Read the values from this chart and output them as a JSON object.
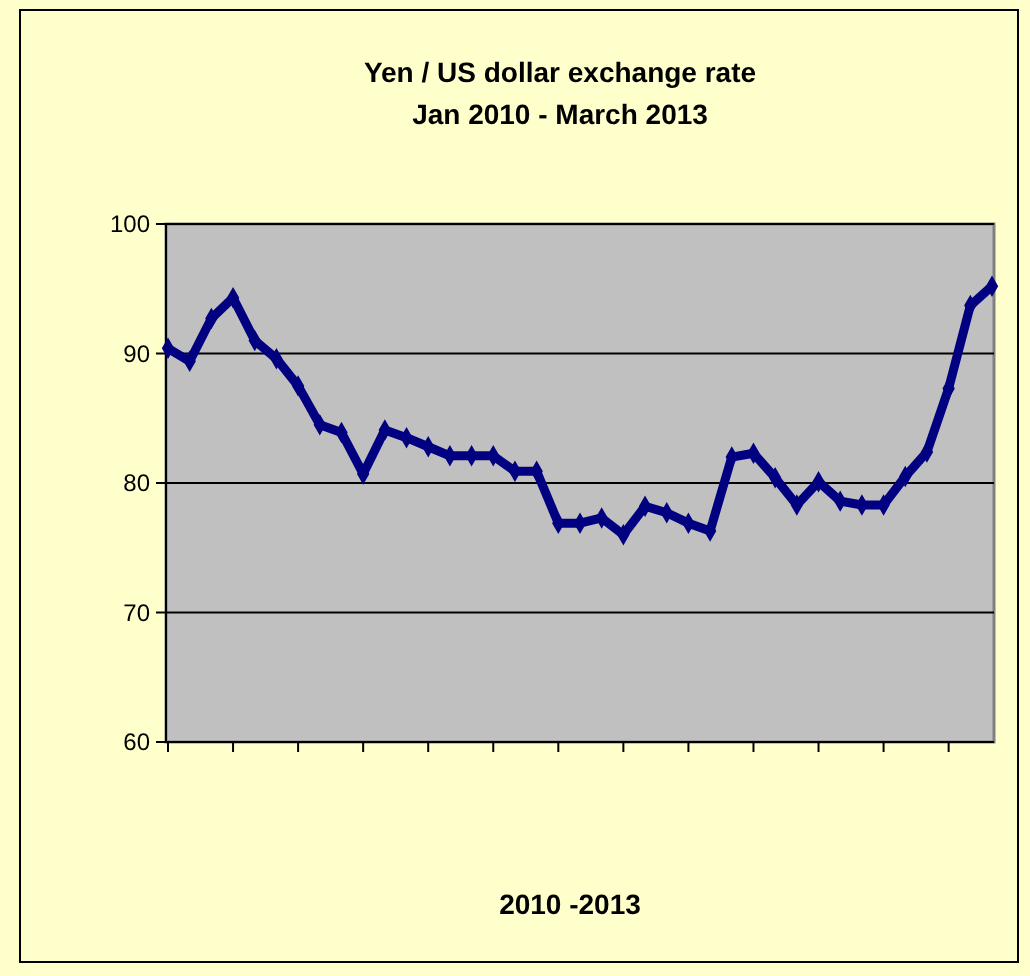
{
  "chart_data": {
    "type": "line",
    "title": "Yen / US dollar exchange rate\nJan 2010 - March 2013",
    "xlabel": "2010  -2013",
    "categories": [
      null,
      null,
      null,
      null,
      null,
      null,
      null,
      null,
      null,
      null,
      null,
      null,
      null,
      null,
      null,
      null,
      null,
      null,
      null,
      null,
      null,
      null,
      null,
      null,
      null,
      null,
      null,
      null,
      null,
      null,
      null,
      null,
      null,
      null,
      null,
      null,
      null,
      null,
      null
    ],
    "series": [
      {
        "color": "#000080",
        "values": [
          90.4,
          89.4,
          92.7,
          94.3,
          91.0,
          89.6,
          87.5,
          84.5,
          83.9,
          80.7,
          84.1,
          83.5,
          82.8,
          82.1,
          82.1,
          82.1,
          80.9,
          80.9,
          76.9,
          76.9,
          77.3,
          76.0,
          78.2,
          77.7,
          76.9,
          76.3,
          82.0,
          82.3,
          80.4,
          78.3,
          80.1,
          78.6,
          78.3,
          78.3,
          80.5,
          82.4,
          87.3,
          93.7,
          95.2
        ]
      }
    ],
    "ylim": [
      60,
      100
    ],
    "yticks": [
      60,
      70,
      80,
      90,
      100
    ],
    "grid": "y",
    "marker": "diamond",
    "line_style": "solid"
  }
}
